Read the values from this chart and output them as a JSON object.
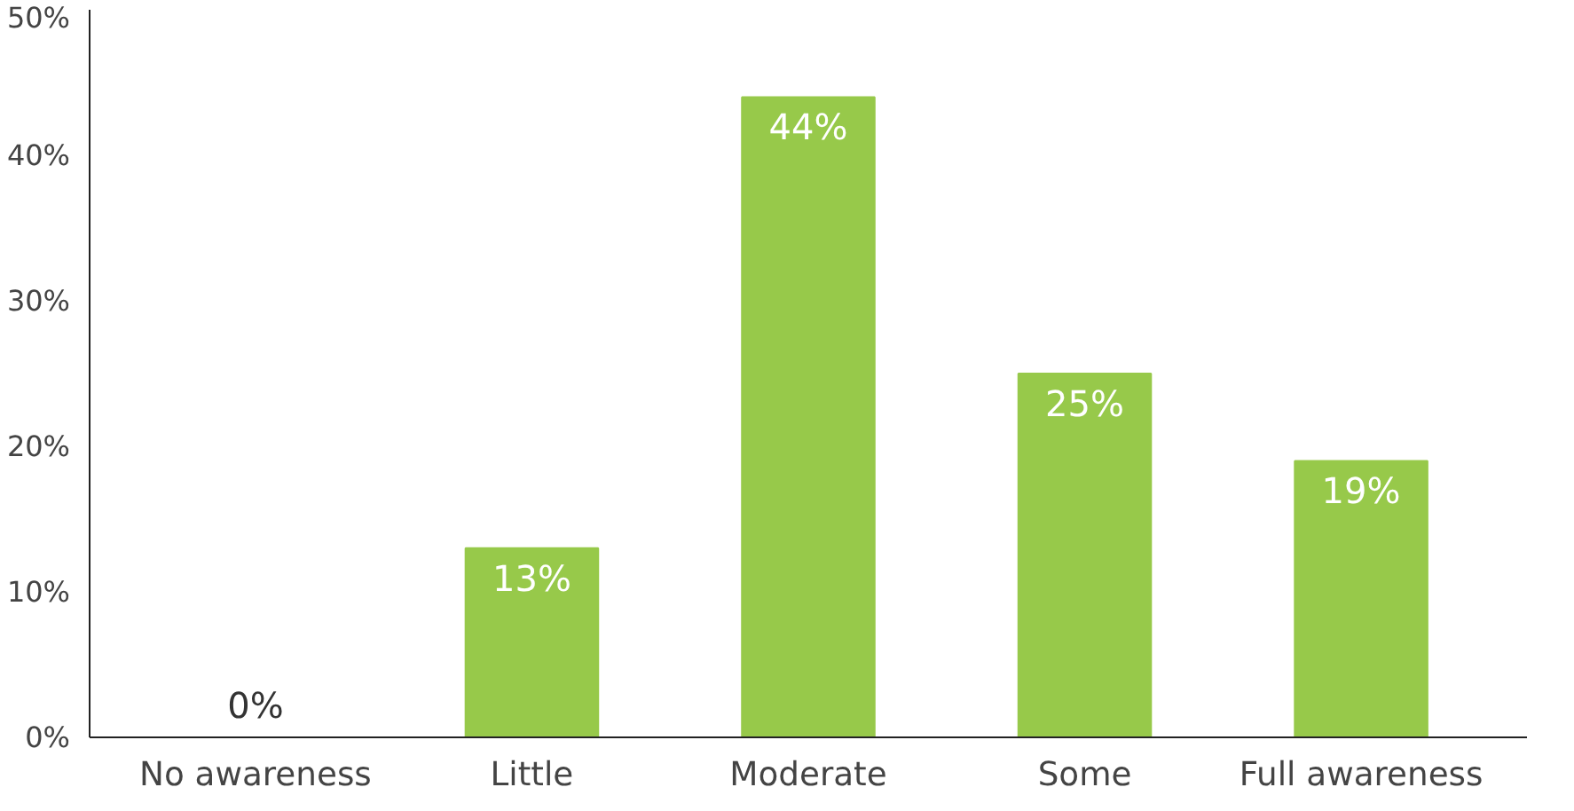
{
  "chart_data": {
    "type": "bar",
    "categories": [
      "No awareness",
      "Little",
      "Moderate",
      "Some",
      "Full awareness"
    ],
    "values": [
      0,
      13,
      44,
      25,
      19
    ],
    "color": "#97c94a",
    "value_labels": [
      "0%",
      "13%",
      "44%",
      "25%",
      "19%"
    ],
    "ylim": [
      0,
      50
    ],
    "yticks": [
      {
        "value": 0,
        "label": "0%"
      },
      {
        "value": 10,
        "label": "10%"
      },
      {
        "value": 20,
        "label": "20%"
      },
      {
        "value": 30,
        "label": "30%"
      },
      {
        "value": 40,
        "label": "40%"
      },
      {
        "value": 50,
        "label": "50%"
      }
    ],
    "grid": false
  }
}
